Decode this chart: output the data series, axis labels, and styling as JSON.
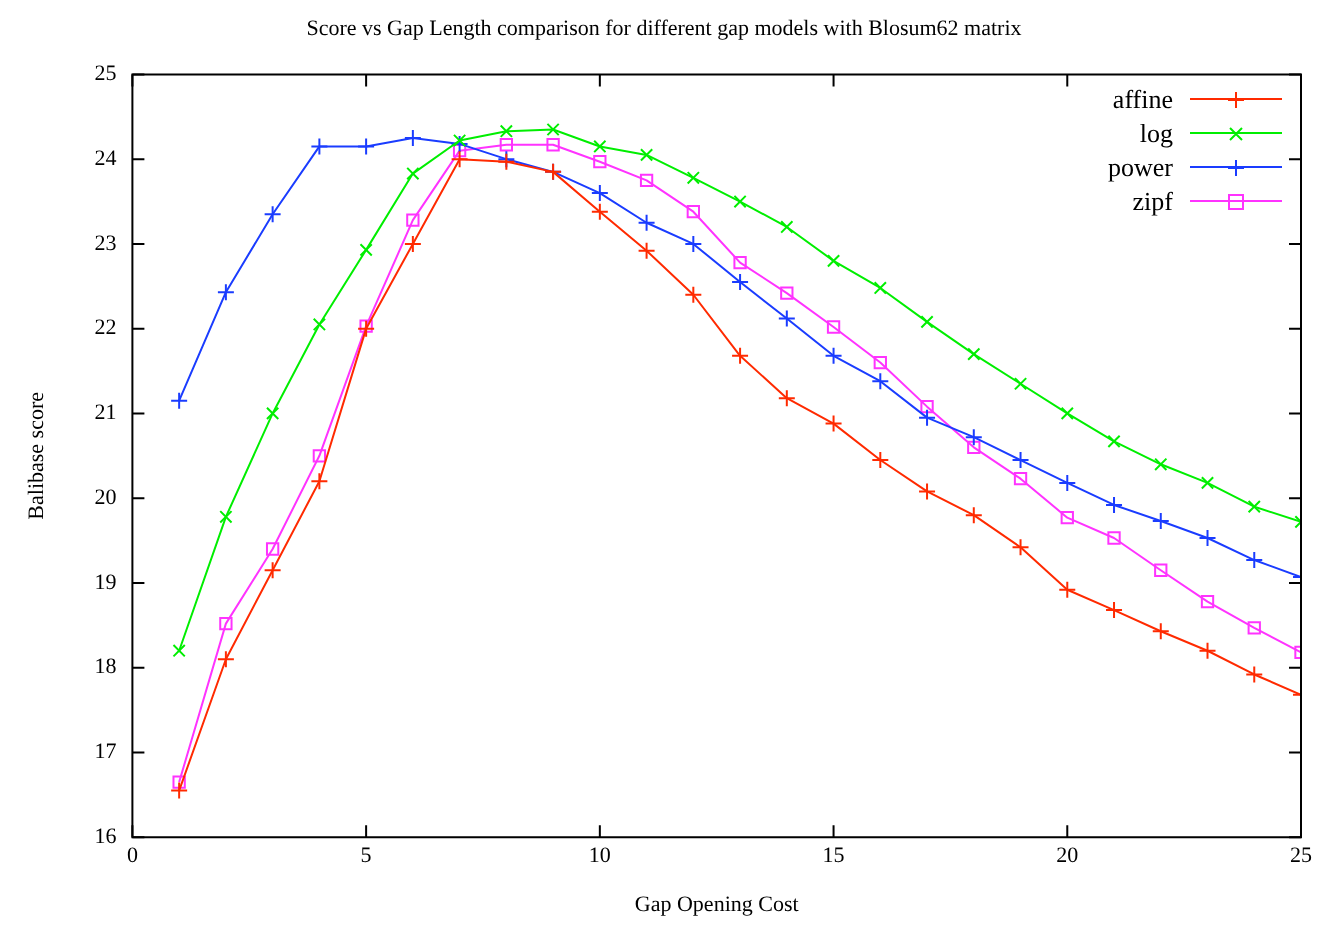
{
  "chart_data": {
    "type": "line",
    "title": "Score vs Gap Length comparison for different gap models with Blosum62 matrix",
    "xlabel": "Gap Opening Cost",
    "ylabel": "Balibase score",
    "x": [
      1,
      2,
      3,
      4,
      5,
      6,
      7,
      8,
      9,
      10,
      11,
      12,
      13,
      14,
      15,
      16,
      17,
      18,
      19,
      20,
      21,
      22,
      23,
      24,
      25
    ],
    "xlim": [
      0,
      25
    ],
    "xticks": [
      0,
      5,
      10,
      15,
      20,
      25
    ],
    "ylim": [
      16,
      25
    ],
    "yticks": [
      16,
      17,
      18,
      19,
      20,
      21,
      22,
      23,
      24,
      25
    ],
    "grid": false,
    "legend": "top right",
    "series": [
      {
        "name": "affine",
        "color": "#ff2a00",
        "marker": "cross",
        "values": [
          16.55,
          18.1,
          19.15,
          20.2,
          22.0,
          23.0,
          24.0,
          23.97,
          23.85,
          23.38,
          22.92,
          22.4,
          21.68,
          21.18,
          20.88,
          20.45,
          20.08,
          19.8,
          19.42,
          18.92,
          18.68,
          18.43,
          18.2,
          17.92,
          17.68
        ]
      },
      {
        "name": "log",
        "color": "#00ee00",
        "marker": "x",
        "values": [
          18.2,
          19.78,
          21.0,
          22.05,
          22.93,
          23.83,
          24.22,
          24.33,
          24.35,
          24.15,
          24.05,
          23.78,
          23.5,
          23.2,
          22.8,
          22.48,
          22.08,
          21.7,
          21.35,
          21.0,
          20.67,
          20.4,
          20.18,
          19.9,
          19.72
        ]
      },
      {
        "name": "power",
        "color": "#1a3cff",
        "marker": "cross",
        "values": [
          21.15,
          22.43,
          23.35,
          24.15,
          24.15,
          24.25,
          24.18,
          24.0,
          23.85,
          23.6,
          23.25,
          23.0,
          22.55,
          22.12,
          21.68,
          21.38,
          20.95,
          20.72,
          20.45,
          20.18,
          19.92,
          19.73,
          19.53,
          19.27,
          19.07
        ]
      },
      {
        "name": "zipf",
        "color": "#ff33ff",
        "marker": "square",
        "values": [
          16.65,
          18.52,
          19.4,
          20.5,
          22.03,
          23.28,
          24.1,
          24.17,
          24.17,
          23.97,
          23.75,
          23.38,
          22.78,
          22.42,
          22.02,
          21.6,
          21.08,
          20.6,
          20.23,
          19.77,
          19.53,
          19.15,
          18.78,
          18.47,
          18.18
        ]
      }
    ]
  }
}
